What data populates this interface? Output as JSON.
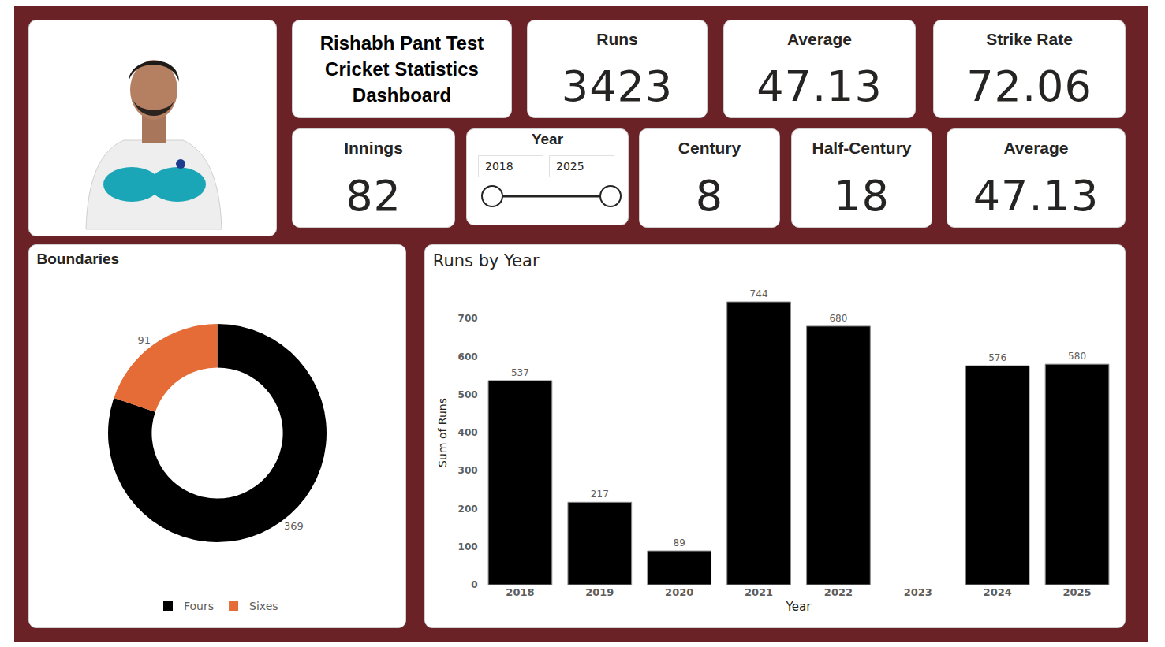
{
  "title": "Rishabh Pant Test Cricket Statistics Dashboard",
  "cards": [
    {
      "title": "Runs",
      "value": 3423
    },
    {
      "title": "Average",
      "value": 47.13
    },
    {
      "title": "Strike Rate",
      "value": 72.06
    },
    {
      "title": "Innings",
      "value": 82
    },
    {
      "title": "Century",
      "value": 8
    },
    {
      "title": "Half-Century",
      "value": 18
    },
    {
      "title": "Average",
      "value": 47.13
    }
  ],
  "year_filter": {
    "title": "Year",
    "from": 2018,
    "to": 2025
  },
  "chart_data": [
    {
      "type": "donut",
      "title": "Boundaries",
      "categories": [
        "Fours",
        "Sixes"
      ],
      "values": [
        369,
        91
      ],
      "colors": [
        "#000000",
        "#e66c37"
      ],
      "data_labels": true,
      "legend": "bottom"
    },
    {
      "type": "bar",
      "title": "Runs by Year",
      "x_label": "Year",
      "y_label": "Sum of Runs",
      "categories": [
        "2018",
        "2019",
        "2020",
        "2021",
        "2022",
        "2023",
        "2024",
        "2025"
      ],
      "values": [
        537,
        217,
        89,
        744,
        680,
        null,
        576,
        580
      ],
      "color": "#000000",
      "ylim": [
        0,
        800
      ],
      "yticks": [
        0,
        100,
        200,
        300,
        400,
        500,
        600,
        700
      ],
      "grid": false,
      "data_labels": true
    }
  ]
}
